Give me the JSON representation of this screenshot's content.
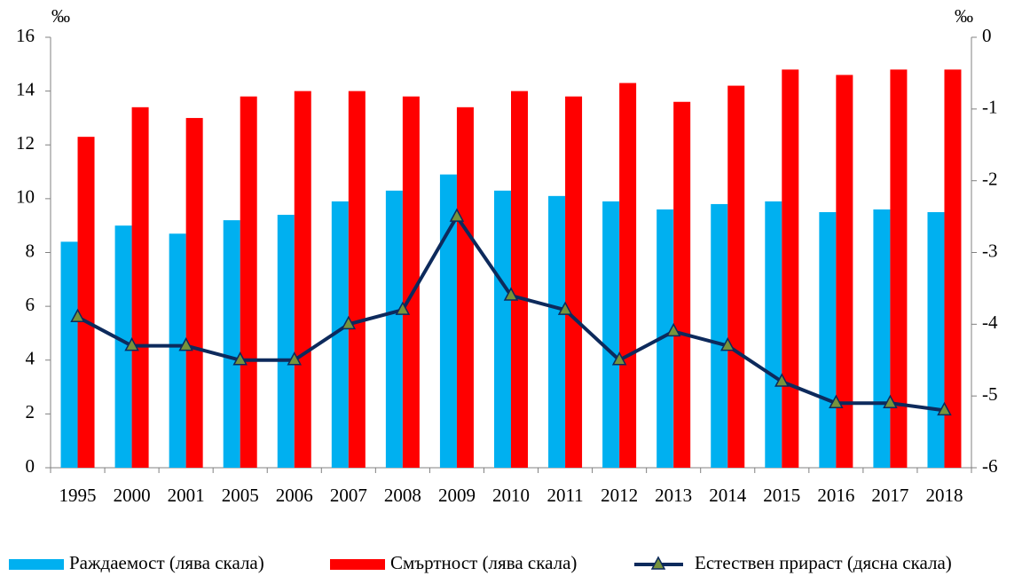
{
  "chart_data": {
    "type": "bar",
    "y_unit": "‰",
    "y2_unit": "‰",
    "categories": [
      "1995",
      "2000",
      "2001",
      "2005",
      "2006",
      "2007",
      "2008",
      "2009",
      "2010",
      "2011",
      "2012",
      "2013",
      "2014",
      "2015",
      "2016",
      "2017",
      "2018"
    ],
    "series": [
      {
        "name": "Раждаемост (лява скала)",
        "type": "bar",
        "color": "#00b0f0",
        "values": [
          8.4,
          9.0,
          8.7,
          9.2,
          9.4,
          9.9,
          10.3,
          10.9,
          10.3,
          10.1,
          9.9,
          9.6,
          9.8,
          9.9,
          9.5,
          9.6,
          9.5
        ]
      },
      {
        "name": "Смъртност (лява скала)",
        "type": "bar",
        "color": "#ff0000",
        "values": [
          12.3,
          13.4,
          13.0,
          13.8,
          14.0,
          14.0,
          13.8,
          13.4,
          14.0,
          13.8,
          14.3,
          13.6,
          14.2,
          14.8,
          14.6,
          14.8,
          14.8
        ]
      },
      {
        "name": "Естествен прираст (дясна скала)",
        "type": "line",
        "axis": "y2",
        "color": "#0d2a5c",
        "marker_color": "#77933c",
        "values": [
          -3.9,
          -4.3,
          -4.3,
          -4.5,
          -4.5,
          -4.0,
          -3.8,
          -2.5,
          -3.6,
          -3.8,
          -4.5,
          -4.1,
          -4.3,
          -4.8,
          -5.1,
          -5.1,
          -5.2
        ]
      }
    ],
    "ylim": [
      0,
      16
    ],
    "yticks": [
      0,
      2,
      4,
      6,
      8,
      10,
      12,
      14,
      16
    ],
    "y2lim": [
      -6,
      0
    ],
    "y2ticks": [
      -6,
      -5,
      -4,
      -3,
      -2,
      -1,
      0
    ],
    "grid": false,
    "legend": "bottom"
  }
}
